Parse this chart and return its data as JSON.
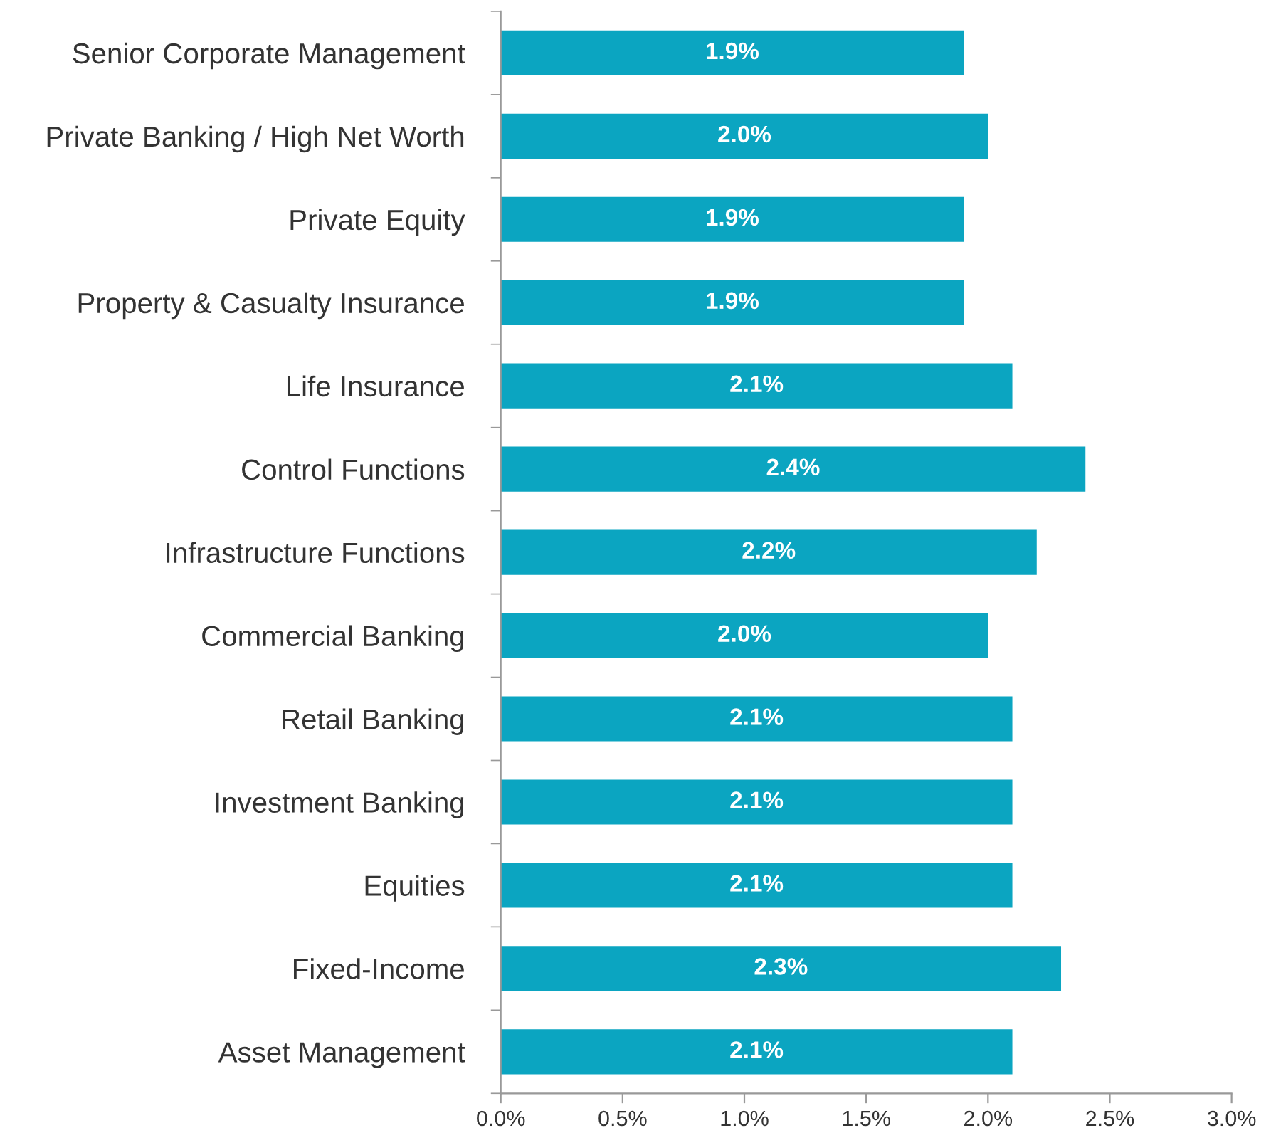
{
  "chart_data": {
    "type": "bar",
    "orientation": "horizontal",
    "categories": [
      "Senior Corporate Management",
      "Private Banking / High Net Worth",
      "Private Equity",
      "Property & Casualty Insurance",
      "Life Insurance",
      "Control Functions",
      "Infrastructure Functions",
      "Commercial Banking",
      "Retail Banking",
      "Investment Banking",
      "Equities",
      "Fixed-Income",
      "Asset Management"
    ],
    "values": [
      1.9,
      2.0,
      1.9,
      1.9,
      2.1,
      2.4,
      2.2,
      2.0,
      2.1,
      2.1,
      2.1,
      2.3,
      2.1
    ],
    "value_labels": [
      "1.9%",
      "2.0%",
      "1.9%",
      "1.9%",
      "2.1%",
      "2.4%",
      "2.2%",
      "2.0%",
      "2.1%",
      "2.1%",
      "2.1%",
      "2.3%",
      "2.1%"
    ],
    "color": "#0ba5c1",
    "xlim": [
      0,
      3.0
    ],
    "xticks": [
      {
        "value": 0,
        "label": "0.0%"
      },
      {
        "value": 0.5,
        "label": "0.5%"
      },
      {
        "value": 1.0,
        "label": "1.0%"
      },
      {
        "value": 1.5,
        "label": "1.5%"
      },
      {
        "value": 2.0,
        "label": "2.0%"
      },
      {
        "value": 2.5,
        "label": "2.5%"
      },
      {
        "value": 3.0,
        "label": "3.0%"
      }
    ],
    "grid": false,
    "legend": false
  }
}
